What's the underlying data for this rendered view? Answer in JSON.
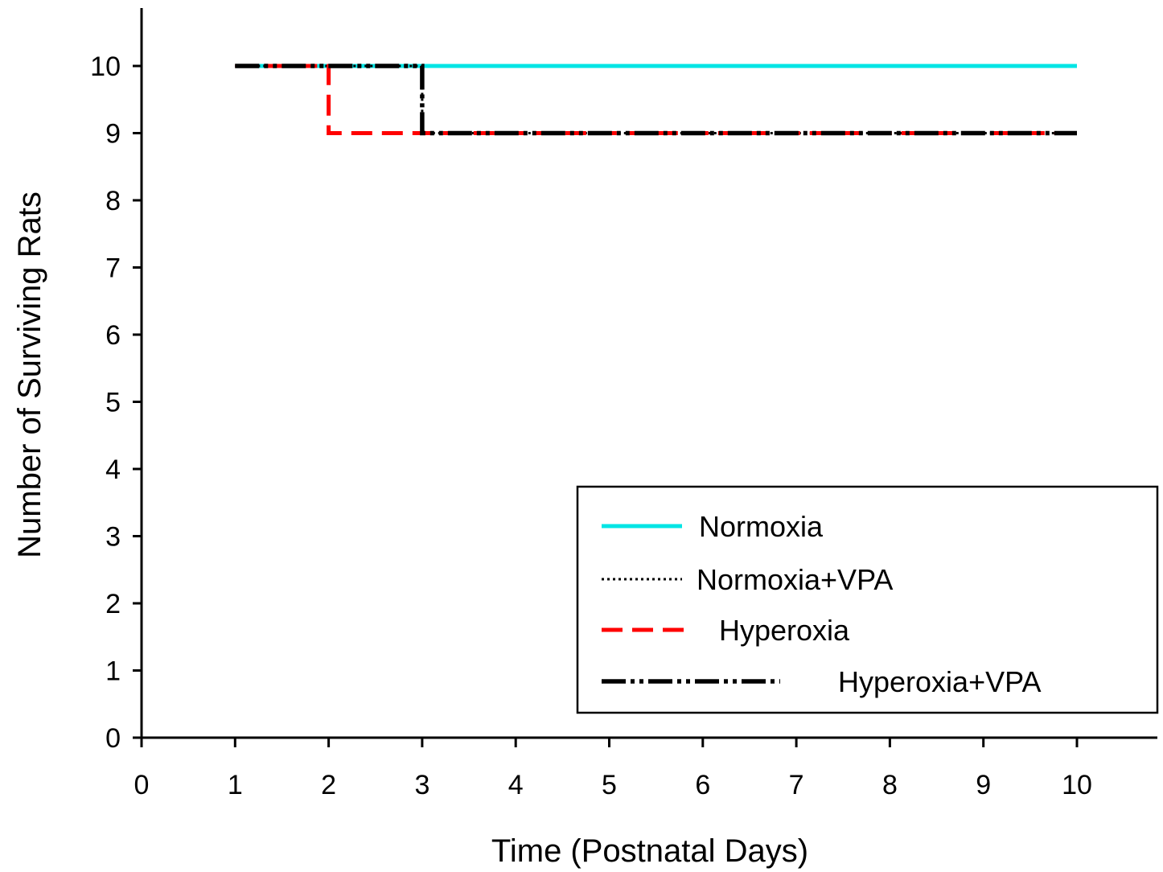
{
  "chart_data": {
    "type": "line",
    "title": "",
    "xlabel": "Time (Postnatal Days)",
    "ylabel": "Number of Surviving Rats",
    "xlim": [
      0,
      10.9
    ],
    "ylim": [
      0,
      11
    ],
    "x_ticks": [
      "0",
      "1",
      "2",
      "3",
      "4",
      "5",
      "6",
      "7",
      "8",
      "9",
      "10"
    ],
    "y_ticks": [
      "0",
      "1",
      "2",
      "3",
      "4",
      "5",
      "6",
      "7",
      "8",
      "9",
      "10"
    ],
    "grid": false,
    "legend_position": "bottom-right",
    "step": true,
    "series": [
      {
        "name": "Normoxia",
        "color": "#00e5e5",
        "style": "solid",
        "x": [
          1,
          2,
          3,
          4,
          5,
          6,
          7,
          8,
          9,
          10
        ],
        "y": [
          10,
          10,
          10,
          10,
          10,
          10,
          10,
          10,
          10,
          10
        ]
      },
      {
        "name": "Normoxia+VPA",
        "color": "#000000",
        "style": "dotted",
        "x": [
          1,
          2,
          3,
          4,
          5,
          6,
          7,
          8,
          9,
          10
        ],
        "y": [
          10,
          10,
          9,
          9,
          9,
          9,
          9,
          9,
          9,
          9
        ]
      },
      {
        "name": "Hyperoxia",
        "color": "#ff0000",
        "style": "dashed",
        "x": [
          1,
          2,
          3,
          4,
          5,
          6,
          7,
          8,
          9,
          10
        ],
        "y": [
          10,
          9,
          9,
          9,
          9,
          9,
          9,
          9,
          9,
          9
        ]
      },
      {
        "name": "Hyperoxia+VPA",
        "color": "#000000",
        "style": "dash-dot-dot",
        "x": [
          1,
          2,
          3,
          4,
          5,
          6,
          7,
          8,
          9,
          10
        ],
        "y": [
          10,
          10,
          9,
          9,
          9,
          9,
          9,
          9,
          9,
          9
        ]
      }
    ]
  }
}
